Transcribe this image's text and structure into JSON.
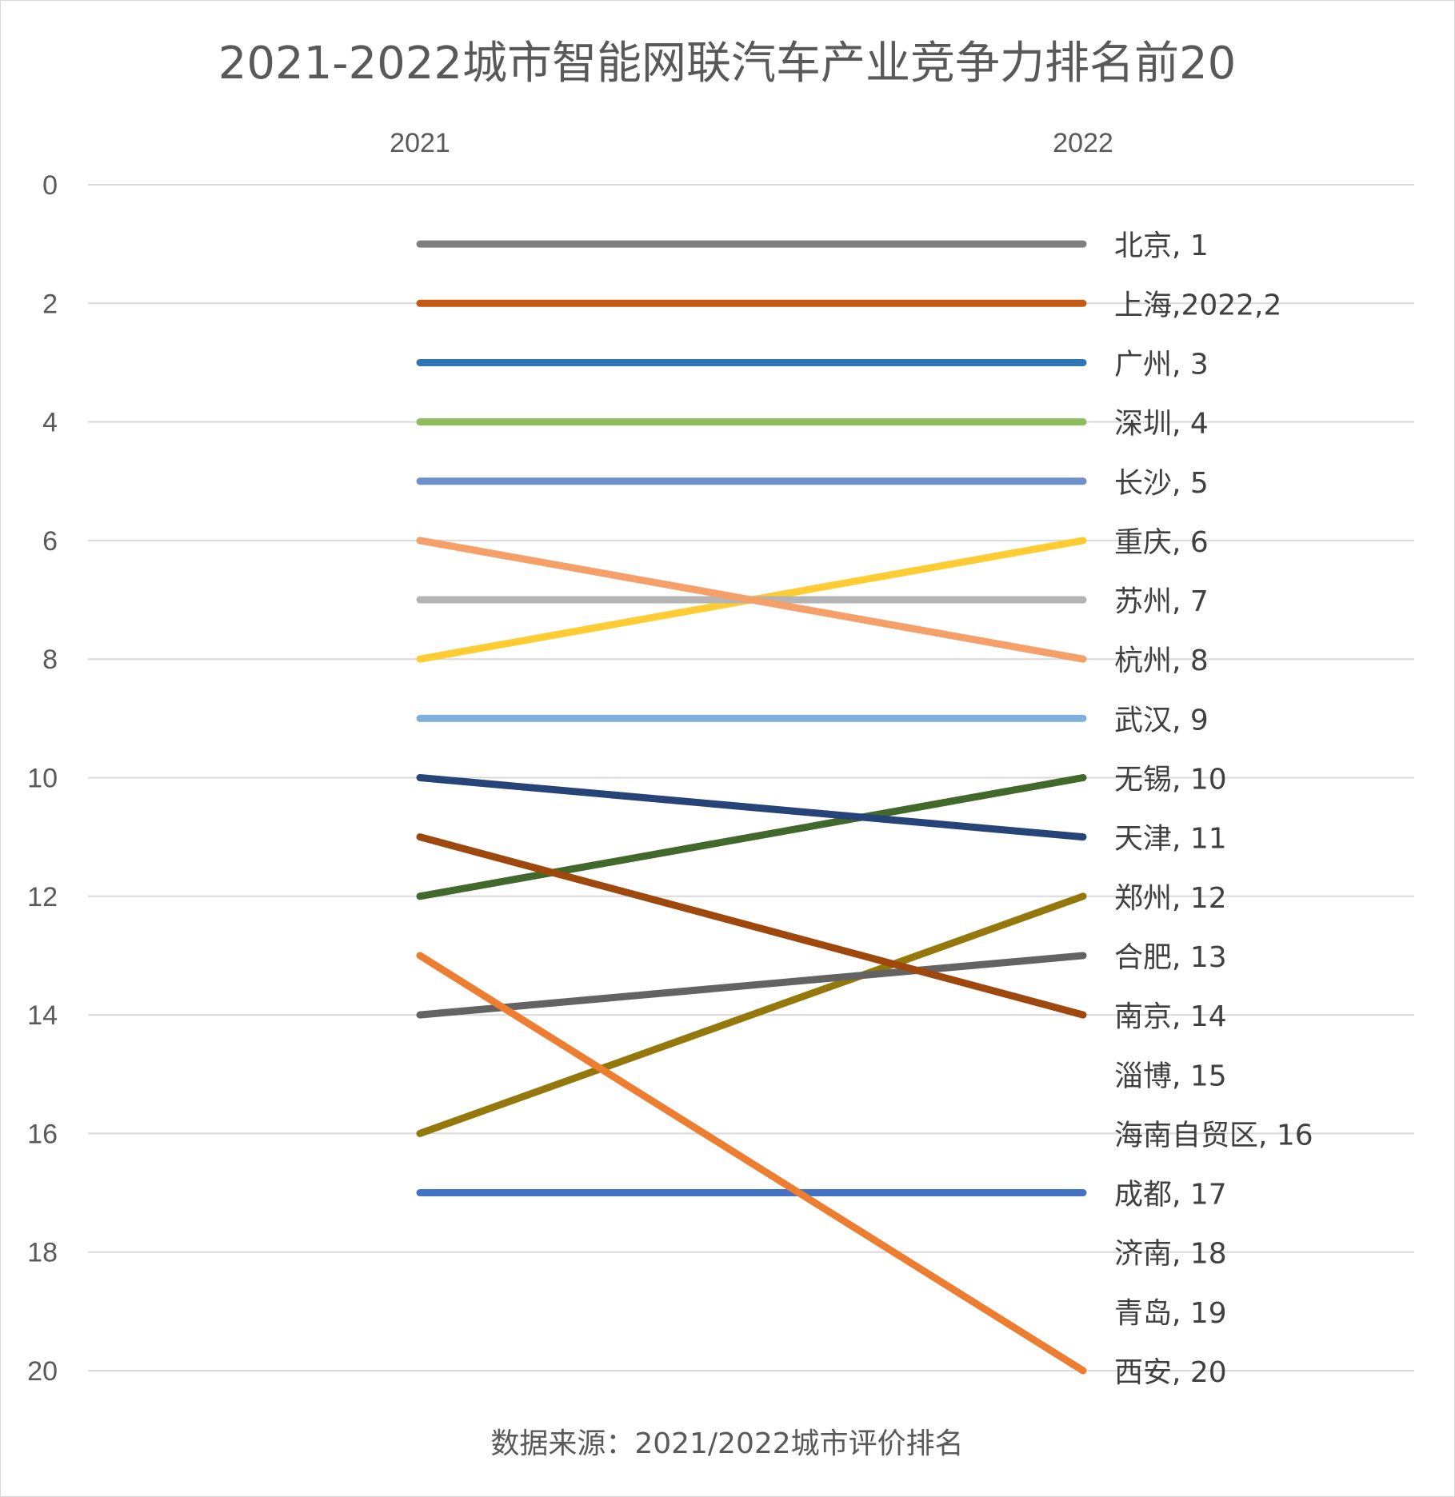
{
  "chart_data": {
    "type": "line",
    "title": "2021-2022城市智能网联汽车产业竞争力排名前20",
    "x": [
      "2021",
      "2022"
    ],
    "ylim": [
      0,
      20
    ],
    "y_reversed": true,
    "y_ticks": [
      "0",
      "2",
      "4",
      "6",
      "8",
      "10",
      "12",
      "14",
      "16",
      "18",
      "20"
    ],
    "grid": true,
    "series": [
      {
        "name": "北京",
        "values": [
          1,
          1
        ],
        "color": "#7f7f7f"
      },
      {
        "name": "上海",
        "values": [
          2,
          2
        ],
        "color": "#c55a11"
      },
      {
        "name": "广州",
        "values": [
          3,
          3
        ],
        "color": "#2e75b6"
      },
      {
        "name": "深圳",
        "values": [
          4,
          4
        ],
        "color": "#8fbc5a"
      },
      {
        "name": "长沙",
        "values": [
          5,
          5
        ],
        "color": "#6e8fc9"
      },
      {
        "name": "重庆",
        "values": [
          8,
          6
        ],
        "color": "#ffcd33"
      },
      {
        "name": "苏州",
        "values": [
          7,
          7
        ],
        "color": "#b4b4b4"
      },
      {
        "name": "杭州",
        "values": [
          6,
          8
        ],
        "color": "#f4a068"
      },
      {
        "name": "武汉",
        "values": [
          9,
          9
        ],
        "color": "#7fb0dd"
      },
      {
        "name": "无锡",
        "values": [
          12,
          10
        ],
        "color": "#43682b"
      },
      {
        "name": "天津",
        "values": [
          10,
          11
        ],
        "color": "#264478"
      },
      {
        "name": "郑州",
        "values": [
          16,
          12
        ],
        "color": "#94780c"
      },
      {
        "name": "合肥",
        "values": [
          14,
          13
        ],
        "color": "#636363"
      },
      {
        "name": "南京",
        "values": [
          11,
          14
        ],
        "color": "#9e480e"
      },
      {
        "name": "淄博",
        "values": [
          null,
          15
        ],
        "color": "#a5a5a5"
      },
      {
        "name": "海南自贸区",
        "values": [
          null,
          16
        ],
        "color": "#ffc000"
      },
      {
        "name": "成都",
        "values": [
          17,
          17
        ],
        "color": "#4472c4"
      },
      {
        "name": "济南",
        "values": [
          null,
          18
        ],
        "color": "#70ad47"
      },
      {
        "name": "青岛",
        "values": [
          null,
          19
        ],
        "color": "#5b9bd5"
      },
      {
        "name": "西安",
        "values": [
          13,
          20
        ],
        "color": "#ed7d31"
      }
    ],
    "labels": [
      {
        "text": "北京, 1",
        "rank": 1
      },
      {
        "text": "上海,2022,2",
        "rank": 2
      },
      {
        "text": "广州, 3",
        "rank": 3
      },
      {
        "text": "深圳, 4",
        "rank": 4
      },
      {
        "text": "长沙, 5",
        "rank": 5
      },
      {
        "text": "重庆, 6",
        "rank": 6
      },
      {
        "text": "苏州, 7",
        "rank": 7
      },
      {
        "text": "杭州, 8",
        "rank": 8
      },
      {
        "text": "武汉, 9",
        "rank": 9
      },
      {
        "text": "无锡, 10",
        "rank": 10
      },
      {
        "text": "天津, 11",
        "rank": 11
      },
      {
        "text": "郑州, 12",
        "rank": 12
      },
      {
        "text": "合肥, 13",
        "rank": 13
      },
      {
        "text": "南京, 14",
        "rank": 14
      },
      {
        "text": "淄博, 15",
        "rank": 15
      },
      {
        "text": "海南自贸区, 16",
        "rank": 16
      },
      {
        "text": "成都, 17",
        "rank": 17
      },
      {
        "text": "济南, 18",
        "rank": 18
      },
      {
        "text": "青岛, 19",
        "rank": 19
      },
      {
        "text": "西安, 20",
        "rank": 20
      }
    ],
    "source": "数据来源：2021/2022城市评价排名"
  }
}
